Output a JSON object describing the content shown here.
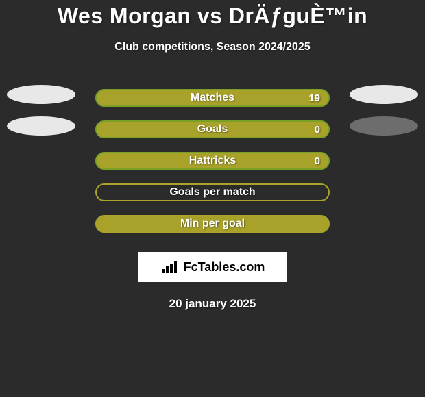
{
  "title": "Wes Morgan vs DrÄƒguÈ™in",
  "subtitle": "Club competitions, Season 2024/2025",
  "date": "20 january 2025",
  "logo_text": "FcTables.com",
  "colors": {
    "background": "#2b2b2b",
    "pill_light": "#e8e8e8",
    "pill_dark": "#6d6d6d",
    "bar_fill": "#a9a22a",
    "bar_border_green": "#7aa026",
    "bar_border_olive": "#a9a22a",
    "text": "#ffffff"
  },
  "rows": [
    {
      "label": "Matches",
      "value": "19",
      "left_pill": "#e8e8e8",
      "right_pill": "#e8e8e8",
      "fill": "#a9a22a",
      "border": "#7aa026",
      "show_value": true
    },
    {
      "label": "Goals",
      "value": "0",
      "left_pill": "#e8e8e8",
      "right_pill": "#6d6d6d",
      "fill": "#a9a22a",
      "border": "#7aa026",
      "show_value": true
    },
    {
      "label": "Hattricks",
      "value": "0",
      "left_pill": null,
      "right_pill": null,
      "fill": "#a9a22a",
      "border": "#7aa026",
      "show_value": true
    },
    {
      "label": "Goals per match",
      "value": "",
      "left_pill": null,
      "right_pill": null,
      "fill": "#2b2b2b",
      "border": "#a9a22a",
      "show_value": false
    },
    {
      "label": "Min per goal",
      "value": "",
      "left_pill": null,
      "right_pill": null,
      "fill": "#a9a22a",
      "border": "#a9a22a",
      "show_value": false
    }
  ]
}
